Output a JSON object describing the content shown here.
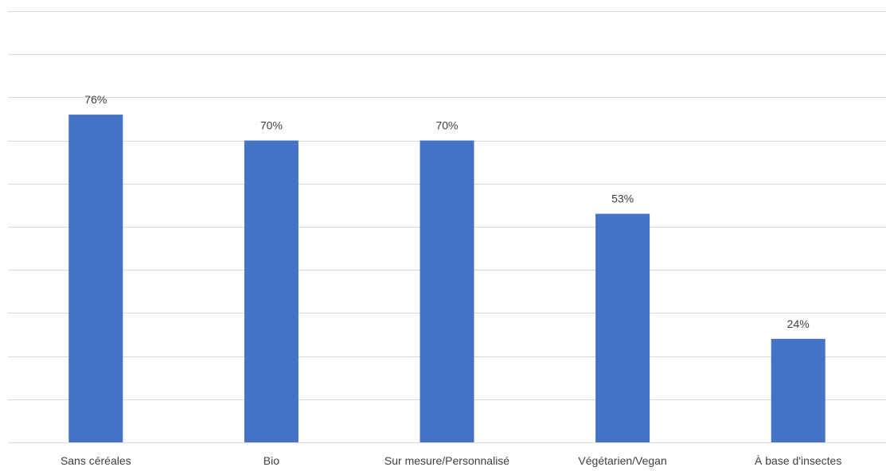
{
  "chart_data": {
    "type": "bar",
    "categories": [
      "Sans céréales",
      "Bio",
      "Sur mesure/Personnalisé",
      "Végétarien/Vegan",
      "À base d'insectes"
    ],
    "values": [
      76,
      70,
      70,
      53,
      24
    ],
    "value_labels": [
      "76%",
      "70%",
      "70%",
      "53%",
      "24%"
    ],
    "unit": "%",
    "ylim": [
      0,
      100
    ],
    "y_gridline_step": 10,
    "grid": true,
    "legend": "none",
    "bar_color": "#4472c4",
    "gridline_color": "#d9d9d9",
    "label_color": "#404040"
  }
}
